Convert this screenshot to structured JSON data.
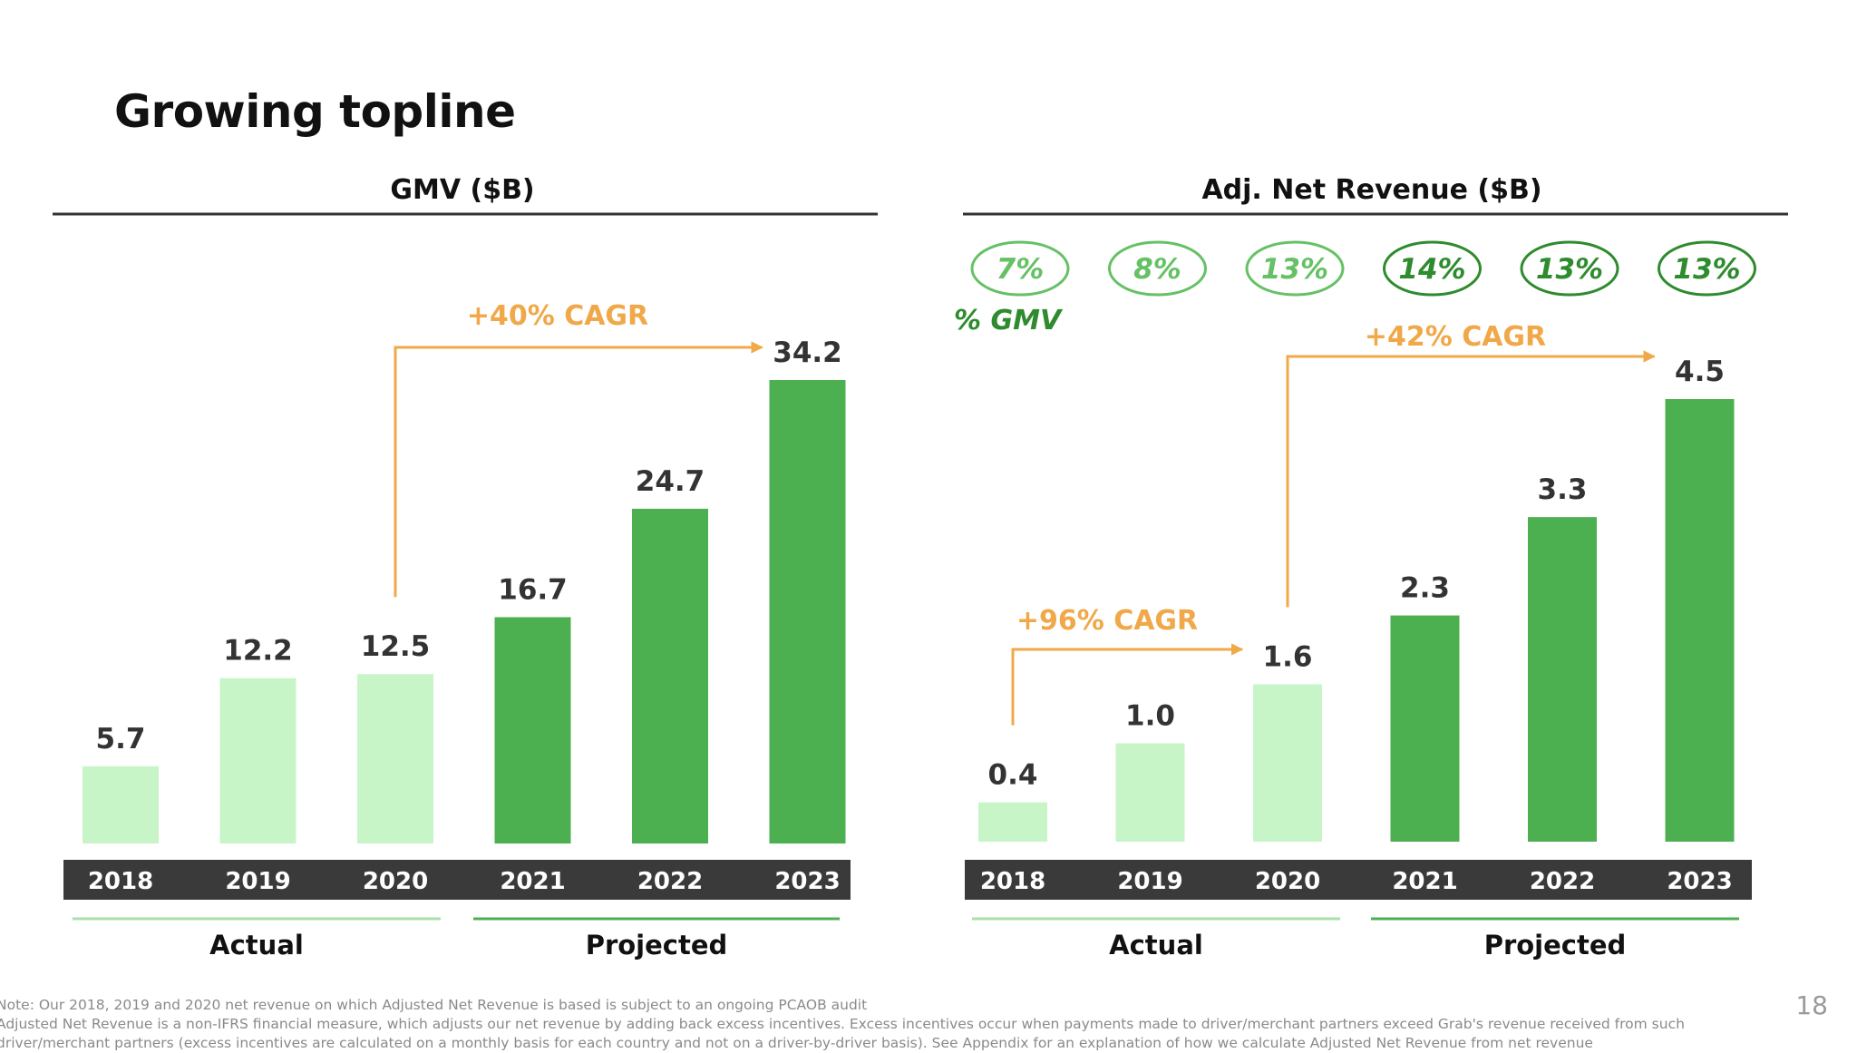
{
  "slide": {
    "title": "Growing topline",
    "page_number": "18",
    "notes": [
      "Note: Our 2018, 2019 and 2020 net revenue on which Adjusted Net Revenue is based is subject to an ongoing PCAOB audit",
      "Adjusted Net Revenue is a non-IFRS financial measure, which adjusts our net revenue by adding back excess incentives. Excess incentives occur when payments made to driver/merchant partners exceed Grab's revenue received from such",
      "driver/merchant partners (excess incentives are calculated on a monthly basis for each country and not on a driver-by-driver basis). See Appendix for an explanation of how we calculate Adjusted Net Revenue from net revenue"
    ]
  },
  "colors": {
    "actual": "#c8f5c8",
    "projected": "#4caf50",
    "cagr": "#f0a848",
    "axis_band": "#3a3a3a",
    "gmv_pct_light": "#66c166",
    "gmv_pct_dark": "#2e8b2e"
  },
  "chart_data": [
    {
      "type": "bar",
      "title": "GMV ($B)",
      "categories": [
        "2018",
        "2019",
        "2020",
        "2021",
        "2022",
        "2023"
      ],
      "values": [
        5.7,
        12.2,
        12.5,
        16.7,
        24.7,
        34.2
      ],
      "value_labels": [
        "5.7",
        "12.2",
        "12.5",
        "16.7",
        "24.7",
        "34.2"
      ],
      "status": [
        "actual",
        "actual",
        "actual",
        "projected",
        "projected",
        "projected"
      ],
      "ylim": [
        0,
        34.2
      ],
      "cagr_annotations": [
        {
          "label": "+40% CAGR",
          "from": "2020",
          "to": "2023"
        }
      ],
      "groups": [
        {
          "label": "Actual",
          "categories": [
            "2018",
            "2019",
            "2020"
          ]
        },
        {
          "label": "Projected",
          "categories": [
            "2021",
            "2022",
            "2023"
          ]
        }
      ]
    },
    {
      "type": "bar",
      "title": "Adj. Net Revenue ($B)",
      "categories": [
        "2018",
        "2019",
        "2020",
        "2021",
        "2022",
        "2023"
      ],
      "values": [
        0.4,
        1.0,
        1.6,
        2.3,
        3.3,
        4.5
      ],
      "value_labels": [
        "0.4",
        "1.0",
        "1.6",
        "2.3",
        "3.3",
        "4.5"
      ],
      "status": [
        "actual",
        "actual",
        "actual",
        "projected",
        "projected",
        "projected"
      ],
      "ylim": [
        0,
        4.5
      ],
      "pct_gmv_label": "% GMV",
      "pct_gmv": [
        "7%",
        "8%",
        "13%",
        "14%",
        "13%",
        "13%"
      ],
      "cagr_annotations": [
        {
          "label": "+96% CAGR",
          "from": "2018",
          "to": "2020"
        },
        {
          "label": "+42% CAGR",
          "from": "2020",
          "to": "2023"
        }
      ],
      "groups": [
        {
          "label": "Actual",
          "categories": [
            "2018",
            "2019",
            "2020"
          ]
        },
        {
          "label": "Projected",
          "categories": [
            "2021",
            "2022",
            "2023"
          ]
        }
      ]
    }
  ]
}
